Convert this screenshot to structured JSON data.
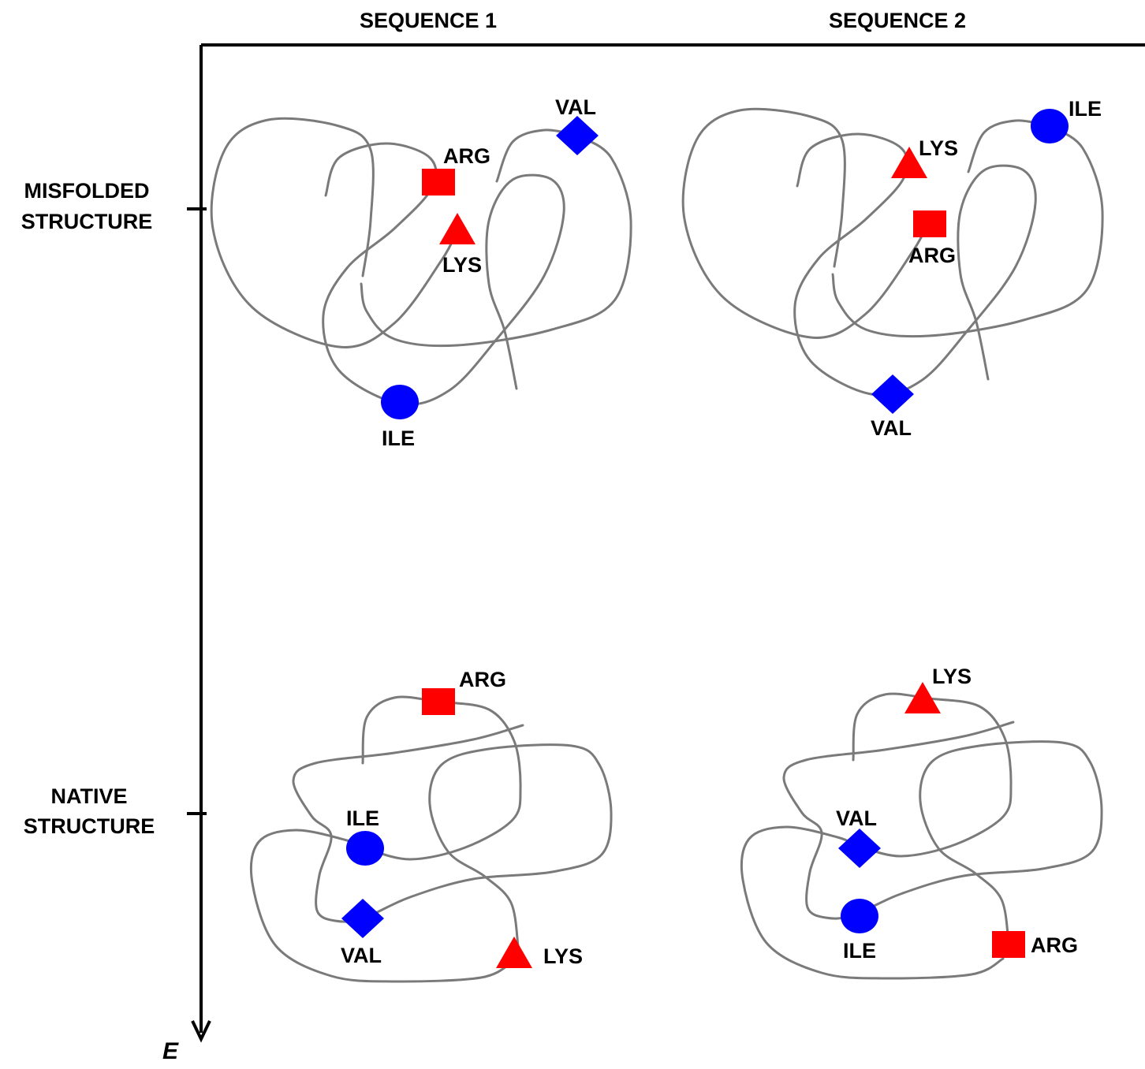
{
  "column_headers": [
    "SEQUENCE 1",
    "SEQUENCE 2"
  ],
  "row_labels": [
    [
      "MISFOLDED",
      "STRUCTURE"
    ],
    [
      "NATIVE",
      "STRUCTURE"
    ]
  ],
  "axis_label": "E",
  "panels": [
    {
      "residues": [
        "ARG",
        "LYS",
        "VAL",
        "ILE"
      ]
    },
    {
      "residues": [
        "LYS",
        "ARG",
        "ILE",
        "VAL"
      ]
    },
    {
      "residues": [
        "ARG",
        "ILE",
        "VAL",
        "LYS"
      ]
    },
    {
      "residues": [
        "LYS",
        "VAL",
        "ILE",
        "ARG"
      ]
    }
  ]
}
